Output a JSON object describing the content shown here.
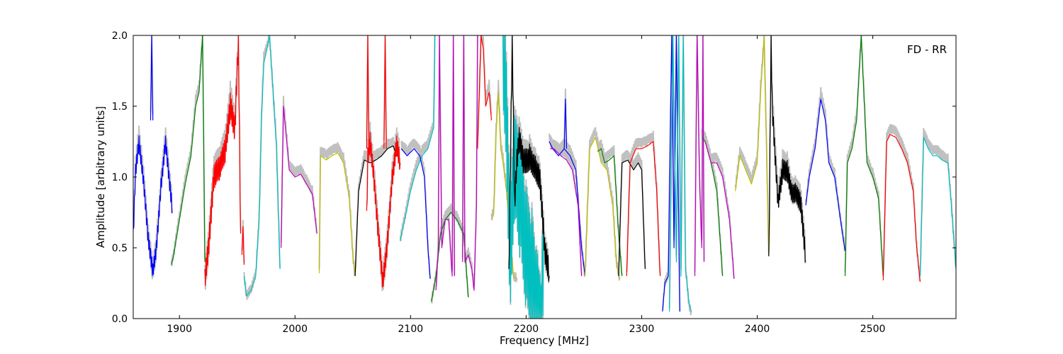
{
  "chart_data": {
    "type": "line",
    "xlabel": "Frequency [MHz]",
    "ylabel": "Amplitude [arbitrary units]",
    "annotation": "FD - RR",
    "annotation_position": "top-right",
    "xlim": [
      1860,
      2572
    ],
    "ylim": [
      0.0,
      2.0
    ],
    "x_ticks": [
      1900,
      2000,
      2100,
      2200,
      2300,
      2400,
      2500
    ],
    "x_tick_labels": [
      "1900",
      "2000",
      "2100",
      "2200",
      "2300",
      "2400",
      "2500"
    ],
    "y_ticks": [
      0.0,
      0.5,
      1.0,
      1.5,
      2.0
    ],
    "y_tick_labels": [
      "0.0",
      "0.5",
      "1.0",
      "1.5",
      "2.0"
    ],
    "grid": false,
    "background_color": "#c0c0c0",
    "segments": [
      {
        "color": "#0000ff",
        "x": [
          1860,
          1862,
          1865,
          1869,
          1873,
          1877,
          1880,
          1884,
          1888,
          1891,
          1894
        ],
        "y": [
          0.6,
          1.05,
          1.24,
          0.95,
          0.55,
          0.33,
          0.5,
          0.95,
          1.26,
          1.0,
          0.75
        ],
        "osc": 0.06
      },
      {
        "color": "#0000ff",
        "x": [
          1875,
          1876,
          1877
        ],
        "y": [
          1.4,
          2.0,
          1.4
        ]
      },
      {
        "color": "#008000",
        "x": [
          1893,
          1895,
          1900,
          1905,
          1910,
          1914,
          1917,
          1920,
          1922
        ],
        "y": [
          0.38,
          0.45,
          0.7,
          0.95,
          1.15,
          1.5,
          1.6,
          2.0,
          0.4
        ]
      },
      {
        "color": "#ff0000",
        "x": [
          1922,
          1925,
          1930,
          1935,
          1940,
          1944,
          1948,
          1951,
          1953
        ],
        "y": [
          0.3,
          0.5,
          1.0,
          1.05,
          1.2,
          1.5,
          1.35,
          2.0,
          0.6
        ],
        "osc": 0.1
      },
      {
        "color": "#ff0000",
        "x": [
          1954,
          1955,
          1956
        ],
        "y": [
          0.45,
          0.65,
          0.38
        ]
      },
      {
        "color": "#00bfbf",
        "x": [
          1956,
          1958,
          1962,
          1966,
          1969,
          1971,
          1973,
          1978,
          1984,
          1987
        ],
        "y": [
          0.3,
          0.16,
          0.2,
          0.3,
          0.7,
          1.4,
          1.8,
          2.0,
          1.2,
          0.35
        ]
      },
      {
        "color": "#bf00bf",
        "x": [
          1988,
          1990,
          1995,
          2000,
          2005,
          2010,
          2015,
          2019
        ],
        "y": [
          0.5,
          1.5,
          1.05,
          1.0,
          1.02,
          0.95,
          0.88,
          0.6
        ]
      },
      {
        "color": "#bfbf00",
        "x": [
          2021,
          2022,
          2027,
          2032,
          2037,
          2042,
          2047,
          2050,
          2052
        ],
        "y": [
          0.32,
          1.15,
          1.12,
          1.15,
          1.17,
          1.1,
          0.85,
          0.45,
          0.3
        ]
      },
      {
        "color": "#000000",
        "x": [
          2052,
          2055,
          2060,
          2065,
          2070,
          2075,
          2080,
          2085,
          2088
        ],
        "y": [
          0.3,
          0.9,
          1.12,
          1.1,
          1.12,
          1.15,
          1.2,
          1.22,
          1.15
        ]
      },
      {
        "color": "#ff0000",
        "x": [
          2062,
          2063,
          2065,
          2068,
          2072,
          2076,
          2080,
          2084,
          2088,
          2091
        ],
        "y": [
          0.72,
          1.15,
          1.25,
          1.0,
          0.6,
          0.25,
          0.55,
          1.0,
          1.25,
          1.1
        ],
        "osc": 0.08
      },
      {
        "color": "#ff0000",
        "x": [
          2062,
          2063,
          2064
        ],
        "y": [
          1.2,
          2.0,
          1.2
        ]
      },
      {
        "color": "#ff0000",
        "x": [
          2077,
          2078,
          2079
        ],
        "y": [
          1.2,
          2.0,
          1.2
        ]
      },
      {
        "color": "#00bfbf",
        "x": [
          2091,
          2095,
          2100,
          2105,
          2110,
          2115,
          2120,
          2121
        ],
        "y": [
          0.55,
          0.7,
          0.9,
          1.05,
          1.15,
          1.2,
          1.35,
          2.0
        ]
      },
      {
        "color": "#0000ff",
        "x": [
          2092,
          2097,
          2103,
          2108,
          2112,
          2115,
          2117
        ],
        "y": [
          1.2,
          1.15,
          1.2,
          1.15,
          1.0,
          0.5,
          0.28
        ]
      },
      {
        "color": "#008000",
        "x": [
          2118,
          2122,
          2126,
          2130,
          2135,
          2140,
          2146,
          2150
        ],
        "y": [
          0.12,
          0.3,
          0.6,
          0.7,
          0.75,
          0.7,
          0.6,
          0.15
        ]
      },
      {
        "color": "#bf00bf",
        "x": [
          2122,
          2124,
          2125,
          2127,
          2130,
          2133,
          2136,
          2137,
          2138
        ],
        "y": [
          0.2,
          0.5,
          2.0,
          0.5,
          0.7,
          0.7,
          0.3,
          2.0,
          0.3
        ]
      },
      {
        "color": "#bf00bf",
        "x": [
          2145,
          2146,
          2147,
          2150,
          2153,
          2155,
          2157,
          2158
        ],
        "y": [
          0.4,
          2.0,
          0.4,
          0.45,
          0.35,
          0.2,
          0.8,
          2.0
        ]
      },
      {
        "color": "#ff0000",
        "x": [
          2158,
          2161,
          2163,
          2165,
          2168,
          2170
        ],
        "y": [
          1.2,
          2.0,
          1.9,
          1.5,
          1.6,
          1.4
        ]
      },
      {
        "color": "#bfbf00",
        "x": [
          2170,
          2172,
          2174,
          2176,
          2178,
          2180,
          2183,
          2186,
          2189,
          2192
        ],
        "y": [
          0.7,
          0.75,
          1.3,
          1.6,
          1.2,
          1.1,
          0.9,
          0.6,
          0.3,
          0.28
        ]
      },
      {
        "color": "#00bfbf",
        "x": [
          2180,
          2183,
          2186,
          2190,
          2195,
          2200,
          2205,
          2210,
          2213,
          2215
        ],
        "y": [
          2.0,
          1.5,
          0.4,
          1.0,
          0.8,
          0.5,
          0.4,
          0.15,
          0.0,
          0.6
        ],
        "osc": 0.45
      },
      {
        "color": "#000000",
        "x": [
          2185,
          2188,
          2190,
          2192,
          2194,
          2198,
          2203,
          2208,
          2212,
          2216,
          2220
        ],
        "y": [
          0.3,
          2.0,
          0.8,
          1.1,
          1.25,
          1.1,
          1.15,
          1.08,
          1.0,
          0.5,
          0.3
        ],
        "osc": 0.1
      },
      {
        "color": "#0000ff",
        "x": [
          2220,
          2223,
          2228,
          2233,
          2238,
          2243,
          2248,
          2251
        ],
        "y": [
          1.25,
          1.2,
          1.15,
          1.2,
          1.15,
          1.05,
          0.5,
          0.3
        ]
      },
      {
        "color": "#bf00bf",
        "x": [
          2221,
          2224,
          2230,
          2235,
          2240,
          2245,
          2248
        ],
        "y": [
          1.2,
          1.2,
          1.15,
          1.12,
          1.05,
          0.8,
          0.3
        ]
      },
      {
        "color": "#0000ff",
        "x": [
          2233,
          2234,
          2235
        ],
        "y": [
          1.2,
          1.55,
          1.2
        ]
      },
      {
        "color": "#bfbf00",
        "x": [
          2251,
          2255,
          2260,
          2265,
          2270,
          2275,
          2278,
          2281
        ],
        "y": [
          0.3,
          1.2,
          1.28,
          1.1,
          1.05,
          0.8,
          0.4,
          0.28
        ]
      },
      {
        "color": "#008000",
        "x": [
          2262,
          2265,
          2268,
          2272,
          2276,
          2280,
          2283
        ],
        "y": [
          1.18,
          1.2,
          1.1,
          1.12,
          1.15,
          0.6,
          0.3
        ]
      },
      {
        "color": "#000000",
        "x": [
          2280,
          2283,
          2288,
          2293,
          2297,
          2300,
          2303
        ],
        "y": [
          0.3,
          1.1,
          1.12,
          1.05,
          1.1,
          1.05,
          0.35
        ]
      },
      {
        "color": "#ff0000",
        "x": [
          2287,
          2290,
          2295,
          2300,
          2305,
          2310,
          2313,
          2316
        ],
        "y": [
          0.3,
          1.1,
          1.2,
          1.2,
          1.22,
          1.25,
          0.9,
          0.3
        ]
      },
      {
        "color": "#0000ff",
        "x": [
          2318,
          2320,
          2323,
          2326,
          2328,
          2330,
          2333
        ],
        "y": [
          0.05,
          0.25,
          0.3,
          2.0,
          0.5,
          2.0,
          0.05
        ]
      },
      {
        "color": "#00bfbf",
        "x": [
          2324,
          2327,
          2330,
          2332,
          2334,
          2336,
          2338,
          2341,
          2343
        ],
        "y": [
          0.05,
          2.0,
          0.4,
          2.0,
          0.3,
          2.0,
          0.35,
          0.1,
          0.05
        ]
      },
      {
        "color": "#bf00bf",
        "x": [
          2346,
          2347,
          2348,
          2350,
          2352,
          2353,
          2354
        ],
        "y": [
          0.3,
          1.2,
          2.0,
          1.0,
          0.5,
          2.0,
          0.4
        ]
      },
      {
        "color": "#008000",
        "x": [
          2352,
          2355,
          2360,
          2365,
          2370
        ],
        "y": [
          1.28,
          1.25,
          1.1,
          0.9,
          0.3
        ]
      },
      {
        "color": "#bf00bf",
        "x": [
          2355,
          2360,
          2365,
          2370,
          2376,
          2380
        ],
        "y": [
          1.25,
          1.1,
          1.1,
          1.0,
          0.7,
          0.28
        ]
      },
      {
        "color": "#bfbf00",
        "x": [
          2381,
          2385,
          2390,
          2395,
          2400,
          2403,
          2406,
          2408,
          2410
        ],
        "y": [
          0.9,
          1.15,
          1.05,
          0.95,
          1.1,
          1.6,
          2.0,
          1.2,
          0.45
        ]
      },
      {
        "color": "#000000",
        "x": [
          2410,
          2412,
          2413,
          2415,
          2418,
          2422,
          2426,
          2430,
          2434,
          2438,
          2442
        ],
        "y": [
          0.4,
          2.0,
          1.5,
          1.2,
          0.8,
          1.05,
          1.05,
          0.9,
          0.9,
          0.8,
          0.4
        ],
        "osc": 0.08
      },
      {
        "color": "#0000ff",
        "x": [
          2442,
          2445,
          2450,
          2455,
          2459,
          2462,
          2467,
          2472,
          2476
        ],
        "y": [
          0.8,
          1.0,
          1.2,
          1.55,
          1.4,
          1.1,
          1.0,
          0.7,
          0.48
        ]
      },
      {
        "color": "#008000",
        "x": [
          2476,
          2478,
          2482,
          2486,
          2490,
          2495,
          2500,
          2505,
          2509
        ],
        "y": [
          0.3,
          1.1,
          1.2,
          1.4,
          2.0,
          1.1,
          1.0,
          0.85,
          0.3
        ]
      },
      {
        "color": "#ff0000",
        "x": [
          2509,
          2512,
          2515,
          2520,
          2525,
          2530,
          2535,
          2538,
          2541
        ],
        "y": [
          0.27,
          1.25,
          1.3,
          1.28,
          1.2,
          1.1,
          0.9,
          0.5,
          0.26
        ]
      },
      {
        "color": "#00bfbf",
        "x": [
          2541,
          2544,
          2548,
          2552,
          2556,
          2560,
          2565,
          2568,
          2572
        ],
        "y": [
          0.3,
          1.28,
          1.2,
          1.15,
          1.15,
          1.12,
          1.1,
          0.8,
          0.35
        ]
      }
    ]
  }
}
